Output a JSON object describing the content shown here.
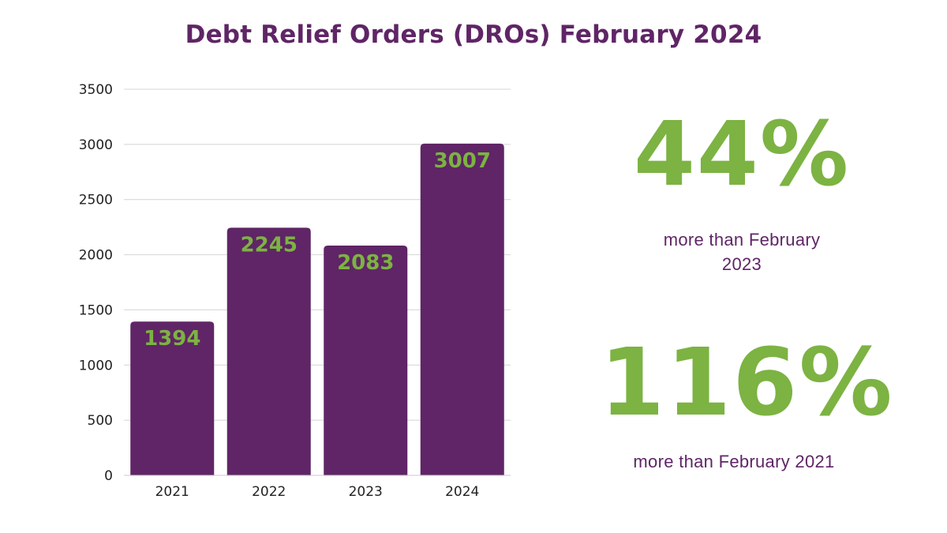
{
  "title": "Debt Relief Orders (DROs) February 2024",
  "colors": {
    "bar": "#5f2566",
    "data_label": "#7cb342",
    "title": "#5f2566",
    "highlight": "#7cb342",
    "grid": "#d4d4d4"
  },
  "chart_data": {
    "type": "bar",
    "categories": [
      "2021",
      "2022",
      "2023",
      "2024"
    ],
    "values": [
      1394,
      2245,
      2083,
      3007
    ],
    "data_labels": [
      "1394",
      "2245",
      "2083",
      "3007"
    ],
    "ylim": [
      0,
      3500
    ],
    "yticks": [
      0,
      500,
      1000,
      1500,
      2000,
      2500,
      3000,
      3500
    ],
    "ytick_labels": [
      "0",
      "500",
      "1000",
      "1500",
      "2000",
      "2500",
      "3000",
      "3500"
    ],
    "grid": true,
    "legend": "none"
  },
  "stats": [
    {
      "value": "44%",
      "text": "more than February 2023"
    },
    {
      "value": "116%",
      "text": "more than February 2021"
    }
  ]
}
